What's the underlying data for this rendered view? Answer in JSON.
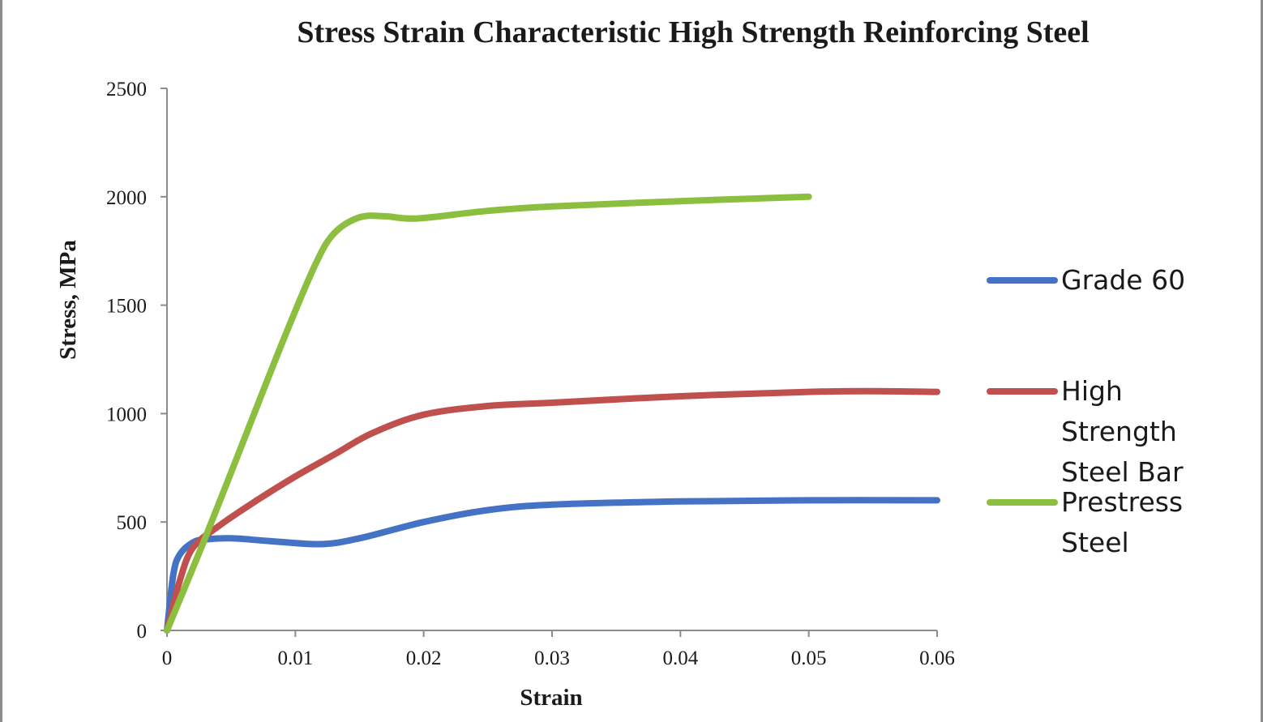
{
  "chart_data": {
    "type": "line",
    "title": "Stress Strain Characteristic High Strength Reinforcing  Steel",
    "xlabel": "Strain",
    "ylabel": "Stress, MPa",
    "xlim": [
      0,
      0.06
    ],
    "ylim": [
      0,
      2500
    ],
    "x_ticks": [
      "0",
      "0.01",
      "0.02",
      "0.03",
      "0.04",
      "0.05",
      "0.06"
    ],
    "y_ticks": [
      "0",
      "500",
      "1000",
      "1500",
      "2000",
      "2500"
    ],
    "grid": false,
    "legend_position": "right",
    "series": [
      {
        "name": "Grade 60",
        "name_lines": [
          "Grade 60"
        ],
        "color": "#4472C4",
        "points": [
          [
            0,
            0
          ],
          [
            0.0005,
            260
          ],
          [
            0.001,
            350
          ],
          [
            0.002,
            405
          ],
          [
            0.003,
            420
          ],
          [
            0.005,
            425
          ],
          [
            0.008,
            412
          ],
          [
            0.012,
            398
          ],
          [
            0.015,
            425
          ],
          [
            0.02,
            500
          ],
          [
            0.025,
            555
          ],
          [
            0.03,
            580
          ],
          [
            0.04,
            595
          ],
          [
            0.05,
            600
          ],
          [
            0.06,
            600
          ]
        ]
      },
      {
        "name": "High Strength Steel Bar",
        "name_lines": [
          "High",
          "Strength",
          "Steel Bar"
        ],
        "color": "#C0504D",
        "points": [
          [
            0,
            0
          ],
          [
            0.001,
            230
          ],
          [
            0.002,
            380
          ],
          [
            0.004,
            480
          ],
          [
            0.007,
            600
          ],
          [
            0.01,
            710
          ],
          [
            0.013,
            810
          ],
          [
            0.016,
            910
          ],
          [
            0.02,
            995
          ],
          [
            0.025,
            1035
          ],
          [
            0.03,
            1050
          ],
          [
            0.04,
            1080
          ],
          [
            0.05,
            1100
          ],
          [
            0.055,
            1103
          ],
          [
            0.06,
            1100
          ]
        ]
      },
      {
        "name": "Prestress Steel",
        "name_lines": [
          "Prestress",
          "Steel"
        ],
        "color": "#8CBF3F",
        "points": [
          [
            0,
            0
          ],
          [
            0.003,
            430
          ],
          [
            0.006,
            880
          ],
          [
            0.009,
            1330
          ],
          [
            0.0115,
            1680
          ],
          [
            0.013,
            1830
          ],
          [
            0.015,
            1905
          ],
          [
            0.017,
            1910
          ],
          [
            0.0195,
            1900
          ],
          [
            0.025,
            1935
          ],
          [
            0.03,
            1955
          ],
          [
            0.04,
            1980
          ],
          [
            0.05,
            2000
          ]
        ]
      }
    ]
  }
}
